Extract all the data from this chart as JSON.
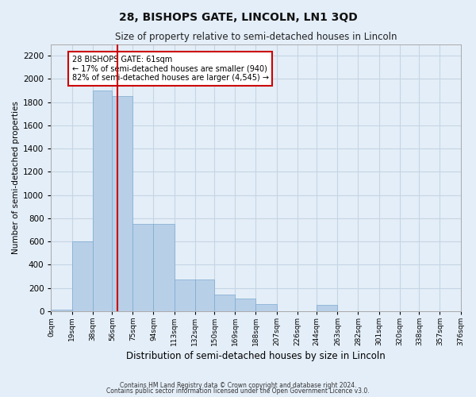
{
  "title": "28, BISHOPS GATE, LINCOLN, LN1 3QD",
  "subtitle": "Size of property relative to semi-detached houses in Lincoln",
  "xlabel": "Distribution of semi-detached houses by size in Lincoln",
  "ylabel": "Number of semi-detached properties",
  "footnote1": "Contains HM Land Registry data © Crown copyright and database right 2024.",
  "footnote2": "Contains public sector information licensed under the Open Government Licence v3.0.",
  "bin_labels": [
    "0sqm",
    "19sqm",
    "38sqm",
    "56sqm",
    "75sqm",
    "94sqm",
    "113sqm",
    "132sqm",
    "150sqm",
    "169sqm",
    "188sqm",
    "207sqm",
    "226sqm",
    "244sqm",
    "263sqm",
    "282sqm",
    "301sqm",
    "320sqm",
    "338sqm",
    "357sqm",
    "376sqm"
  ],
  "bin_edges": [
    0,
    19,
    38,
    56,
    75,
    94,
    113,
    132,
    150,
    169,
    188,
    207,
    226,
    244,
    263,
    282,
    301,
    320,
    338,
    357,
    376
  ],
  "bar_heights": [
    10,
    600,
    1900,
    1850,
    750,
    750,
    270,
    270,
    140,
    110,
    60,
    0,
    0,
    50,
    0,
    0,
    0,
    0,
    0,
    0
  ],
  "bar_color": "#b8cfe8",
  "bar_edgecolor": "#7aaad0",
  "grid_color": "#c5d5e5",
  "background_color": "#e4eef8",
  "property_size": 61,
  "red_line_color": "#cc0000",
  "annotation_text": "28 BISHOPS GATE: 61sqm\n← 17% of semi-detached houses are smaller (940)\n82% of semi-detached houses are larger (4,545) →",
  "annotation_box_color": "#ffffff",
  "annotation_box_edgecolor": "#cc0000",
  "ylim": [
    0,
    2300
  ],
  "yticks": [
    0,
    200,
    400,
    600,
    800,
    1000,
    1200,
    1400,
    1600,
    1800,
    2000,
    2200
  ]
}
